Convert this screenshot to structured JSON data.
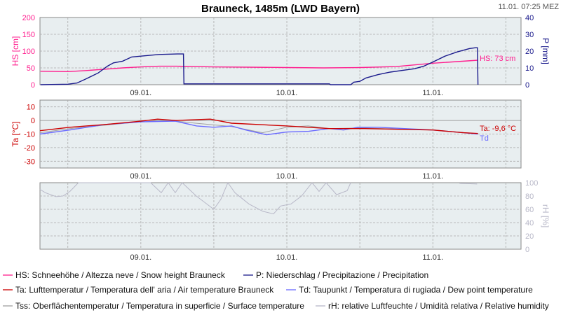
{
  "header": {
    "title": "Brauneck, 1485m (LWD Bayern)",
    "timestamp": "11.01. 07:25 MEZ"
  },
  "colors": {
    "plot_bg": "#e8eef0",
    "HS": "#ff1f8f",
    "P": "#1a1a8c",
    "Ta": "#cc0000",
    "Td": "#6b6bff",
    "Tss": "#a0a0a0",
    "rH": "#b8b8c8"
  },
  "chart_data": [
    {
      "type": "line",
      "x_range": [
        "08.01. 07:25",
        "11.01. 14:30"
      ],
      "x_ticks": [
        "09.01.",
        "10.01.",
        "11.01."
      ],
      "grid": true,
      "ylabel": "HS [cm]",
      "ylim": [
        0,
        200
      ],
      "yticks": [
        "0",
        "50",
        "100",
        "150",
        "200"
      ],
      "y2label": "P [mm]",
      "y2lim": [
        0,
        40
      ],
      "y2ticks": [
        "0",
        "10",
        "20",
        "30",
        "40"
      ],
      "annotation": "HS: 73 cm",
      "series": [
        {
          "name": "HS",
          "axis": "left",
          "points": [
            [
              "08.01. 07:30",
              40
            ],
            [
              "08.01. 12:00",
              39
            ],
            [
              "08.01. 15:00",
              42
            ],
            [
              "08.01. 18:00",
              46
            ],
            [
              "08.01. 21:00",
              50
            ],
            [
              "09.01. 00:00",
              53
            ],
            [
              "09.01. 03:00",
              55
            ],
            [
              "09.01. 06:00",
              55
            ],
            [
              "09.01. 09:00",
              54
            ],
            [
              "09.01. 12:00",
              53
            ],
            [
              "09.01. 18:00",
              52
            ],
            [
              "10.01. 00:00",
              51
            ],
            [
              "10.01. 06:00",
              50
            ],
            [
              "10.01. 12:00",
              51
            ],
            [
              "10.01. 18:00",
              54
            ],
            [
              "11.01. 00:00",
              64
            ],
            [
              "11.01. 07:25",
              73
            ]
          ]
        },
        {
          "name": "P",
          "axis": "right",
          "points": [
            [
              "08.01. 07:30",
              0
            ],
            [
              "08.01. 12:00",
              0.3
            ],
            [
              "08.01. 13:30",
              1
            ],
            [
              "08.01. 15:00",
              3.5
            ],
            [
              "08.01. 17:00",
              7
            ],
            [
              "08.01. 18:30",
              11
            ],
            [
              "08.01. 19:30",
              13
            ],
            [
              "08.01. 21:00",
              14
            ],
            [
              "08.01. 22:30",
              16.5
            ],
            [
              "09.01. 00:00",
              17
            ],
            [
              "09.01. 03:00",
              18
            ],
            [
              "09.01. 06:00",
              18.3
            ],
            [
              "09.01. 07:00",
              18.3
            ],
            [
              "09.01. 07:05",
              0.5
            ],
            [
              "10.01. 07:00",
              0.5
            ],
            [
              "10.01. 07:10",
              0
            ],
            [
              "10.01. 10:30",
              0
            ],
            [
              "10.01. 11:00",
              1.5
            ],
            [
              "10.01. 12:00",
              2
            ],
            [
              "10.01. 13:00",
              4
            ],
            [
              "10.01. 15:00",
              6
            ],
            [
              "10.01. 17:00",
              7.5
            ],
            [
              "10.01. 19:00",
              8.5
            ],
            [
              "10.01. 21:00",
              9.5
            ],
            [
              "10.01. 22:30",
              11
            ],
            [
              "11.01. 00:00",
              13.5
            ],
            [
              "11.01. 02:00",
              17
            ],
            [
              "11.01. 04:00",
              19.5
            ],
            [
              "11.01. 06:00",
              21.5
            ],
            [
              "11.01. 07:00",
              22
            ],
            [
              "11.01. 07:20",
              22
            ],
            [
              "11.01. 07:25",
              0
            ]
          ]
        }
      ]
    },
    {
      "type": "line",
      "x_range": [
        "08.01. 07:25",
        "11.01. 14:30"
      ],
      "x_ticks": [
        "09.01.",
        "10.01.",
        "11.01."
      ],
      "grid": true,
      "ylabel": "Ta [°C]",
      "ylim": [
        -35,
        15
      ],
      "yticks": [
        "10",
        "0",
        "-10",
        "-20",
        "-30"
      ],
      "annotation": "Ta: -9,6 °C",
      "annotation2": "Td",
      "series": [
        {
          "name": "Tss",
          "points": [
            [
              "08.01. 07:25",
              -9
            ],
            [
              "08.01. 12:20",
              -6
            ],
            [
              "08.01. 18:00",
              -3.5
            ],
            [
              "09.01. 00:00",
              -1
            ],
            [
              "09.01. 05:00",
              0
            ],
            [
              "09.01. 09:00",
              -2
            ],
            [
              "09.01. 14:55",
              -4.5
            ],
            [
              "09.01. 20:00",
              -9
            ],
            [
              "10.01. 00:00",
              -5
            ],
            [
              "10.01. 03:30",
              -4
            ],
            [
              "10.01. 07:00",
              -6
            ],
            [
              "10.01. 12:00",
              -5.5
            ],
            [
              "11.01. 00:00",
              -7
            ],
            [
              "11.01. 05:00",
              -8.8
            ],
            [
              "11.01. 07:25",
              -9.8
            ]
          ]
        },
        {
          "name": "Td",
          "points": [
            [
              "08.01. 07:25",
              -10
            ],
            [
              "08.01. 12:20",
              -7
            ],
            [
              "08.01. 18:00",
              -3
            ],
            [
              "09.01. 00:00",
              -1
            ],
            [
              "09.01. 05:40",
              -0.5
            ],
            [
              "09.01. 09:10",
              -4
            ],
            [
              "09.01. 12:00",
              -5
            ],
            [
              "09.01. 14:55",
              -4
            ],
            [
              "09.01. 17:15",
              -7
            ],
            [
              "09.01. 20:40",
              -10.5
            ],
            [
              "10.01. 00:00",
              -8.5
            ],
            [
              "10.01. 03:35",
              -8
            ],
            [
              "10.01. 07:00",
              -6
            ],
            [
              "10.01. 09:20",
              -7
            ],
            [
              "10.01. 11:40",
              -5
            ],
            [
              "10.01. 15:00",
              -5
            ],
            [
              "11.01. 00:00",
              -7
            ],
            [
              "11.01. 05:00",
              -9
            ],
            [
              "11.01. 07:25",
              -10
            ]
          ]
        },
        {
          "name": "Ta",
          "points": [
            [
              "08.01. 07:25",
              -7.5
            ],
            [
              "08.01. 12:20",
              -5
            ],
            [
              "08.01. 18:05",
              -3
            ],
            [
              "09.01. 00:00",
              -0.5
            ],
            [
              "09.01. 02:45",
              1
            ],
            [
              "09.01. 05:40",
              0
            ],
            [
              "09.01. 11:25",
              1
            ],
            [
              "09.01. 14:55",
              -2
            ],
            [
              "10.01. 00:00",
              -4
            ],
            [
              "10.01. 07:00",
              -6
            ],
            [
              "10.01. 12:45",
              -6
            ],
            [
              "11.01. 00:00",
              -7
            ],
            [
              "11.01. 05:00",
              -9
            ],
            [
              "11.01. 07:25",
              -9.6
            ]
          ]
        }
      ]
    },
    {
      "type": "line",
      "x_range": [
        "08.01. 07:25",
        "11.01. 14:30"
      ],
      "x_ticks": [
        "09.01.",
        "10.01.",
        "11.01."
      ],
      "grid": true,
      "y2label": "rH [%]",
      "y2lim": [
        0,
        100
      ],
      "y2ticks": [
        "0",
        "20",
        "40",
        "60",
        "80",
        "100"
      ],
      "series": [
        {
          "name": "rH",
          "points": [
            [
              "08.01. 07:24",
              90
            ],
            [
              "08.01. 08:18",
              85
            ],
            [
              "08.01. 10:02",
              79
            ],
            [
              "08.01. 11:12",
              80
            ],
            [
              "08.01. 12:21",
              87
            ],
            [
              "08.01. 13:44",
              100
            ],
            [
              "09.01. 01:37",
              100
            ],
            [
              "09.01. 03:21",
              85
            ],
            [
              "09.01. 04:30",
              100
            ],
            [
              "09.01. 05:39",
              85
            ],
            [
              "09.01. 06:48",
              100
            ],
            [
              "09.01. 09:07",
              80
            ],
            [
              "09.01. 10:16",
              72
            ],
            [
              "09.01. 12:00",
              60
            ],
            [
              "09.01. 13:09",
              75
            ],
            [
              "09.01. 14:18",
              100
            ],
            [
              "09.01. 15:28",
              85
            ],
            [
              "09.01. 17:46",
              68
            ],
            [
              "09.01. 20:04",
              57
            ],
            [
              "09.01. 21:48",
              53
            ],
            [
              "09.01. 22:58",
              65
            ],
            [
              "10.01. 00:41",
              68
            ],
            [
              "10.01. 02:25",
              80
            ],
            [
              "10.01. 04:09",
              100
            ],
            [
              "10.01. 05:18",
              87
            ],
            [
              "10.01. 06:28",
              100
            ],
            [
              "10.01. 08:11",
              82
            ],
            [
              "10.01. 09:55",
              88
            ],
            [
              "10.01. 10:30",
              100
            ],
            [
              null,
              null
            ],
            [
              "11.01. 04:23",
              99
            ],
            [
              "11.01. 07:17",
              98
            ]
          ]
        }
      ]
    }
  ],
  "legend": [
    {
      "key": "HS",
      "label": "HS: Schneehöhe / Altezza neve / Snow height  Brauneck"
    },
    {
      "key": "P",
      "label": "P: Niederschlag / Precipitazione / Precipitation"
    },
    {
      "key": "Ta",
      "label": "Ta: Lufttemperatur / Temperatura dell' aria / Air temperature  Brauneck"
    },
    {
      "key": "Td",
      "label": "Td: Taupunkt / Temperatura di rugiada / Dew point temperature"
    },
    {
      "key": "Tss",
      "label": "Tss: Oberflächentemperatur / Temperatura in superficie / Surface temperature"
    },
    {
      "key": "rH",
      "label": "rH: relative Luftfeuchte / Umidità relativa / Relative humidity"
    }
  ]
}
